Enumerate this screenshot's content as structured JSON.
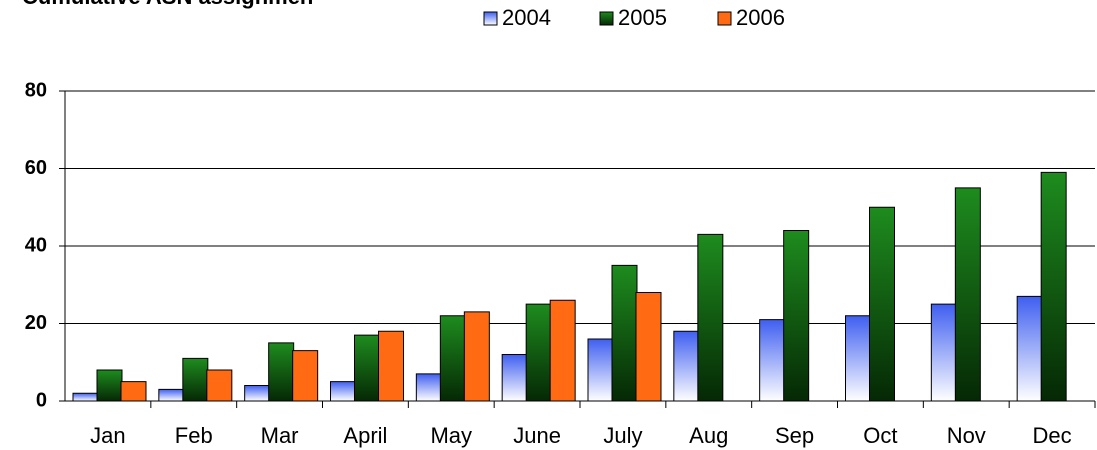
{
  "chart_data": {
    "type": "bar",
    "title": "Cumulative ASN assignmen",
    "categories": [
      "Jan",
      "Feb",
      "Mar",
      "April",
      "May",
      "June",
      "July",
      "Aug",
      "Sep",
      "Oct",
      "Nov",
      "Dec"
    ],
    "series": [
      {
        "name": "2004",
        "color": "#3f5ff0",
        "values": [
          2,
          3,
          4,
          5,
          7,
          12,
          16,
          18,
          21,
          22,
          25,
          27
        ]
      },
      {
        "name": "2005",
        "color": "#1e8c1e",
        "values": [
          8,
          11,
          15,
          17,
          22,
          25,
          35,
          43,
          44,
          50,
          55,
          59
        ]
      },
      {
        "name": "2006",
        "color": "#ff6a13",
        "values": [
          5,
          8,
          13,
          18,
          23,
          26,
          28,
          null,
          null,
          null,
          null,
          null
        ]
      }
    ],
    "ylim": [
      0,
      80
    ],
    "yticks": [
      0,
      20,
      40,
      60,
      80
    ],
    "grid": true,
    "legend": "top"
  }
}
